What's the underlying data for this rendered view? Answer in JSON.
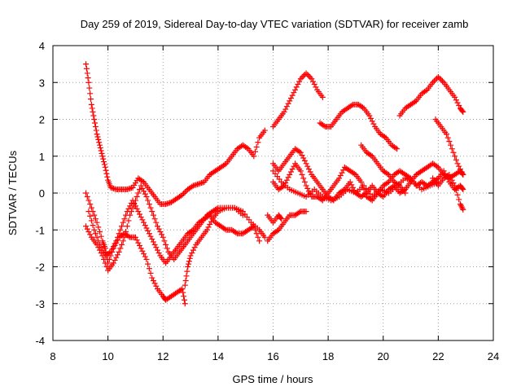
{
  "chart_data": {
    "type": "scatter",
    "title": "Day 259 of 2019, Sidereal Day-to-day VTEC variation (SDTVAR) for receiver zamb",
    "xlabel": "GPS time / hours",
    "ylabel": "SDTVAR / TECUs",
    "xlim": [
      8,
      24
    ],
    "ylim": [
      -4,
      4
    ],
    "xticks": [
      "8",
      "10",
      "12",
      "14",
      "16",
      "18",
      "20",
      "22",
      "24"
    ],
    "yticks": [
      "-4",
      "-3",
      "-2",
      "-1",
      "0",
      "1",
      "2",
      "3",
      "4"
    ],
    "grid": true,
    "marker": "+",
    "color": "#ff0000",
    "series": [
      {
        "name": "trace-1",
        "points": [
          [
            9.2,
            3.5
          ],
          [
            9.3,
            3.0
          ],
          [
            9.4,
            2.4
          ],
          [
            9.5,
            2.0
          ],
          [
            9.6,
            1.6
          ],
          [
            9.7,
            1.3
          ],
          [
            9.8,
            1.0
          ],
          [
            9.9,
            0.7
          ],
          [
            10.0,
            0.35
          ],
          [
            10.1,
            0.15
          ],
          [
            10.3,
            0.1
          ],
          [
            10.5,
            0.1
          ],
          [
            10.7,
            0.1
          ],
          [
            10.9,
            0.15
          ],
          [
            11.1,
            0.4
          ],
          [
            11.3,
            0.3
          ],
          [
            11.5,
            0.1
          ],
          [
            11.7,
            -0.1
          ],
          [
            11.9,
            -0.3
          ],
          [
            12.1,
            -0.3
          ],
          [
            12.3,
            -0.25
          ],
          [
            12.5,
            -0.15
          ],
          [
            12.7,
            -0.05
          ],
          [
            12.9,
            0.1
          ],
          [
            13.1,
            0.2
          ],
          [
            13.3,
            0.25
          ],
          [
            13.5,
            0.3
          ],
          [
            13.7,
            0.5
          ],
          [
            13.9,
            0.6
          ],
          [
            14.1,
            0.7
          ],
          [
            14.3,
            0.8
          ],
          [
            14.5,
            1.0
          ],
          [
            14.7,
            1.2
          ],
          [
            14.9,
            1.3
          ],
          [
            15.1,
            1.2
          ],
          [
            15.3,
            1.0
          ],
          [
            15.5,
            1.5
          ],
          [
            15.7,
            1.7
          ]
        ]
      },
      {
        "name": "trace-2",
        "points": [
          [
            9.2,
            0.0
          ],
          [
            9.4,
            -0.4
          ],
          [
            9.6,
            -0.8
          ],
          [
            9.8,
            -1.3
          ],
          [
            9.9,
            -1.5
          ],
          [
            10.0,
            -1.9
          ],
          [
            10.2,
            -1.5
          ],
          [
            10.4,
            -1.2
          ],
          [
            10.6,
            -1.1
          ],
          [
            10.8,
            -1.2
          ],
          [
            11.0,
            -1.2
          ],
          [
            11.2,
            -1.5
          ],
          [
            11.4,
            -1.8
          ],
          [
            11.6,
            -2.3
          ],
          [
            11.8,
            -2.6
          ],
          [
            12.0,
            -2.8
          ],
          [
            12.1,
            -2.9
          ],
          [
            12.3,
            -2.8
          ],
          [
            12.5,
            -2.7
          ],
          [
            12.7,
            -2.6
          ],
          [
            12.8,
            -3.0
          ]
        ]
      },
      {
        "name": "trace-3",
        "points": [
          [
            12.8,
            -2.5
          ],
          [
            12.9,
            -2.0
          ],
          [
            13.0,
            -1.7
          ],
          [
            13.2,
            -1.4
          ],
          [
            13.4,
            -1.2
          ],
          [
            13.6,
            -1.0
          ],
          [
            13.8,
            -0.7
          ],
          [
            14.0,
            -0.5
          ],
          [
            14.3,
            -0.4
          ],
          [
            14.6,
            -0.4
          ],
          [
            14.9,
            -0.5
          ],
          [
            15.2,
            -0.8
          ],
          [
            15.5,
            -1.0
          ],
          [
            15.7,
            -1.2
          ]
        ]
      },
      {
        "name": "trace-4",
        "points": [
          [
            9.2,
            -0.9
          ],
          [
            9.4,
            -1.2
          ],
          [
            9.6,
            -1.4
          ],
          [
            9.8,
            -1.7
          ],
          [
            10.0,
            -2.1
          ],
          [
            10.2,
            -1.9
          ],
          [
            10.4,
            -1.6
          ],
          [
            10.6,
            -1.2
          ],
          [
            10.8,
            -0.6
          ],
          [
            11.0,
            -0.2
          ],
          [
            11.2,
            0.2
          ],
          [
            11.4,
            -0.1
          ],
          [
            11.6,
            -0.5
          ],
          [
            11.8,
            -0.9
          ],
          [
            12.0,
            -1.2
          ],
          [
            12.2,
            -1.6
          ],
          [
            12.4,
            -1.8
          ],
          [
            12.6,
            -1.6
          ],
          [
            12.8,
            -1.4
          ],
          [
            13.0,
            -1.2
          ],
          [
            13.2,
            -1.0
          ],
          [
            13.4,
            -0.8
          ],
          [
            13.6,
            -0.6
          ],
          [
            13.8,
            -0.5
          ],
          [
            14.0,
            -0.4
          ],
          [
            14.3,
            -0.4
          ],
          [
            14.6,
            -0.4
          ],
          [
            14.9,
            -0.6
          ]
        ]
      },
      {
        "name": "trace-5",
        "points": [
          [
            9.3,
            -0.5
          ],
          [
            9.5,
            -1.0
          ],
          [
            9.7,
            -1.4
          ],
          [
            9.9,
            -1.7
          ],
          [
            10.1,
            -1.6
          ],
          [
            10.3,
            -1.3
          ],
          [
            10.5,
            -0.9
          ],
          [
            10.7,
            -0.5
          ],
          [
            10.9,
            -0.2
          ],
          [
            11.1,
            -0.5
          ],
          [
            11.3,
            -0.8
          ],
          [
            11.5,
            -1.1
          ],
          [
            11.7,
            -1.4
          ],
          [
            11.9,
            -1.7
          ],
          [
            12.1,
            -1.9
          ],
          [
            12.3,
            -1.7
          ],
          [
            12.5,
            -1.5
          ],
          [
            12.7,
            -1.3
          ],
          [
            12.9,
            -1.1
          ],
          [
            13.1,
            -1.0
          ],
          [
            13.3,
            -0.8
          ],
          [
            13.5,
            -0.7
          ],
          [
            13.7,
            -0.6
          ],
          [
            13.9,
            -0.8
          ],
          [
            14.1,
            -0.9
          ],
          [
            14.3,
            -1.0
          ],
          [
            14.5,
            -1.0
          ],
          [
            14.7,
            -1.1
          ],
          [
            14.9,
            -1.1
          ],
          [
            15.1,
            -1.0
          ],
          [
            15.3,
            -0.9
          ],
          [
            15.5,
            -1.3
          ]
        ]
      },
      {
        "name": "trace-6",
        "points": [
          [
            15.8,
            -1.3
          ],
          [
            16.0,
            -1.1
          ],
          [
            16.2,
            -1.0
          ],
          [
            16.4,
            -0.8
          ],
          [
            16.6,
            -0.6
          ],
          [
            16.8,
            -0.6
          ],
          [
            17.0,
            -0.5
          ],
          [
            17.2,
            -0.5
          ]
        ]
      },
      {
        "name": "trace-7",
        "points": [
          [
            15.8,
            -0.6
          ],
          [
            16.0,
            -0.8
          ],
          [
            16.2,
            -0.6
          ],
          [
            16.3,
            -0.7
          ]
        ]
      },
      {
        "name": "trace-8",
        "points": [
          [
            16.0,
            1.8
          ],
          [
            16.2,
            2.0
          ],
          [
            16.4,
            2.2
          ],
          [
            16.6,
            2.5
          ],
          [
            16.8,
            2.8
          ],
          [
            17.0,
            3.1
          ],
          [
            17.2,
            3.25
          ],
          [
            17.4,
            3.1
          ],
          [
            17.6,
            2.8
          ],
          [
            17.8,
            2.6
          ]
        ]
      },
      {
        "name": "trace-9",
        "points": [
          [
            17.7,
            1.9
          ],
          [
            17.9,
            1.8
          ],
          [
            18.1,
            1.8
          ],
          [
            18.3,
            2.0
          ],
          [
            18.5,
            2.2
          ],
          [
            18.7,
            2.3
          ],
          [
            18.9,
            2.4
          ],
          [
            19.1,
            2.4
          ],
          [
            19.3,
            2.3
          ],
          [
            19.5,
            2.1
          ],
          [
            19.7,
            1.8
          ],
          [
            19.9,
            1.6
          ],
          [
            20.1,
            1.5
          ],
          [
            20.3,
            1.3
          ],
          [
            20.5,
            1.2
          ]
        ]
      },
      {
        "name": "trace-10",
        "points": [
          [
            20.6,
            2.1
          ],
          [
            20.8,
            2.3
          ],
          [
            21.0,
            2.4
          ],
          [
            21.2,
            2.5
          ],
          [
            21.4,
            2.7
          ],
          [
            21.6,
            2.8
          ],
          [
            21.8,
            3.0
          ],
          [
            22.0,
            3.15
          ],
          [
            22.2,
            3.0
          ],
          [
            22.4,
            2.8
          ],
          [
            22.6,
            2.6
          ],
          [
            22.8,
            2.3
          ],
          [
            22.9,
            2.2
          ]
        ]
      },
      {
        "name": "trace-11",
        "points": [
          [
            16.0,
            0.8
          ],
          [
            16.2,
            0.6
          ],
          [
            16.4,
            0.8
          ],
          [
            16.6,
            1.0
          ],
          [
            16.8,
            1.2
          ],
          [
            17.0,
            1.1
          ],
          [
            17.2,
            0.8
          ],
          [
            17.4,
            0.5
          ],
          [
            17.6,
            0.3
          ],
          [
            17.8,
            0.1
          ],
          [
            18.0,
            -0.1
          ],
          [
            18.2,
            -0.2
          ],
          [
            18.4,
            0.0
          ],
          [
            18.6,
            0.1
          ],
          [
            18.8,
            0.3
          ],
          [
            19.0,
            0.0
          ],
          [
            19.2,
            -0.1
          ],
          [
            19.4,
            0.0
          ],
          [
            19.6,
            0.2
          ],
          [
            19.8,
            0.0
          ],
          [
            20.0,
            -0.1
          ],
          [
            20.2,
            0.1
          ],
          [
            20.4,
            0.2
          ],
          [
            20.6,
            0.0
          ],
          [
            20.8,
            0.1
          ],
          [
            21.0,
            0.3
          ],
          [
            21.2,
            0.5
          ],
          [
            21.4,
            0.6
          ],
          [
            21.6,
            0.7
          ],
          [
            21.8,
            0.8
          ],
          [
            22.0,
            0.7
          ],
          [
            22.2,
            0.5
          ],
          [
            22.4,
            0.4
          ],
          [
            22.6,
            0.5
          ],
          [
            22.8,
            0.6
          ],
          [
            22.9,
            0.5
          ]
        ]
      },
      {
        "name": "trace-12",
        "points": [
          [
            16.0,
            0.3
          ],
          [
            16.2,
            0.1
          ],
          [
            16.4,
            0.2
          ],
          [
            16.6,
            0.5
          ],
          [
            16.8,
            0.8
          ],
          [
            17.0,
            0.6
          ],
          [
            17.2,
            0.2
          ],
          [
            17.4,
            -0.1
          ],
          [
            17.6,
            -0.1
          ],
          [
            17.8,
            -0.2
          ],
          [
            18.0,
            0.0
          ],
          [
            18.2,
            0.2
          ],
          [
            18.4,
            0.4
          ],
          [
            18.6,
            0.7
          ],
          [
            18.8,
            0.6
          ],
          [
            19.0,
            0.5
          ],
          [
            19.2,
            0.3
          ],
          [
            19.4,
            -0.1
          ],
          [
            19.6,
            -0.2
          ],
          [
            19.8,
            0.0
          ],
          [
            20.0,
            0.2
          ],
          [
            20.2,
            0.3
          ],
          [
            20.4,
            0.5
          ],
          [
            20.6,
            0.6
          ],
          [
            20.8,
            0.5
          ],
          [
            21.0,
            0.4
          ],
          [
            21.2,
            0.2
          ],
          [
            21.4,
            0.3
          ],
          [
            21.6,
            0.2
          ],
          [
            21.8,
            0.3
          ],
          [
            22.0,
            0.4
          ],
          [
            22.2,
            0.6
          ],
          [
            22.4,
            0.3
          ],
          [
            22.6,
            0.1
          ],
          [
            22.8,
            0.2
          ],
          [
            22.9,
            0.1
          ]
        ]
      },
      {
        "name": "trace-13",
        "points": [
          [
            16.0,
            0.6
          ],
          [
            16.3,
            0.3
          ],
          [
            16.6,
            0.1
          ],
          [
            16.9,
            0.0
          ],
          [
            17.2,
            -0.1
          ],
          [
            17.5,
            0.1
          ],
          [
            17.8,
            -0.1
          ],
          [
            18.1,
            -0.2
          ],
          [
            18.4,
            -0.1
          ],
          [
            18.7,
            0.1
          ],
          [
            19.0,
            0.0
          ],
          [
            19.3,
            0.2
          ],
          [
            19.6,
            -0.1
          ],
          [
            19.9,
            0.1
          ],
          [
            20.2,
            0.0
          ],
          [
            20.5,
            0.2
          ],
          [
            20.8,
            0.4
          ],
          [
            21.1,
            0.3
          ],
          [
            21.4,
            0.1
          ],
          [
            21.7,
            0.2
          ],
          [
            22.0,
            0.3
          ]
        ]
      },
      {
        "name": "trace-14",
        "points": [
          [
            19.2,
            1.3
          ],
          [
            19.4,
            1.1
          ],
          [
            19.6,
            1.0
          ],
          [
            19.8,
            0.8
          ],
          [
            20.0,
            0.6
          ],
          [
            20.2,
            0.5
          ],
          [
            20.4,
            0.3
          ],
          [
            20.6,
            0.2
          ],
          [
            20.8,
            0.0
          ]
        ]
      },
      {
        "name": "trace-15",
        "points": [
          [
            21.9,
            2.0
          ],
          [
            22.1,
            1.8
          ],
          [
            22.3,
            1.6
          ],
          [
            22.5,
            1.2
          ],
          [
            22.7,
            0.8
          ],
          [
            22.9,
            0.5
          ]
        ]
      },
      {
        "name": "trace-16",
        "points": [
          [
            21.8,
            0.4
          ],
          [
            22.0,
            0.2
          ],
          [
            22.2,
            0.4
          ],
          [
            22.4,
            0.5
          ],
          [
            22.6,
            0.2
          ],
          [
            22.8,
            -0.3
          ],
          [
            22.9,
            -0.45
          ]
        ]
      }
    ]
  }
}
